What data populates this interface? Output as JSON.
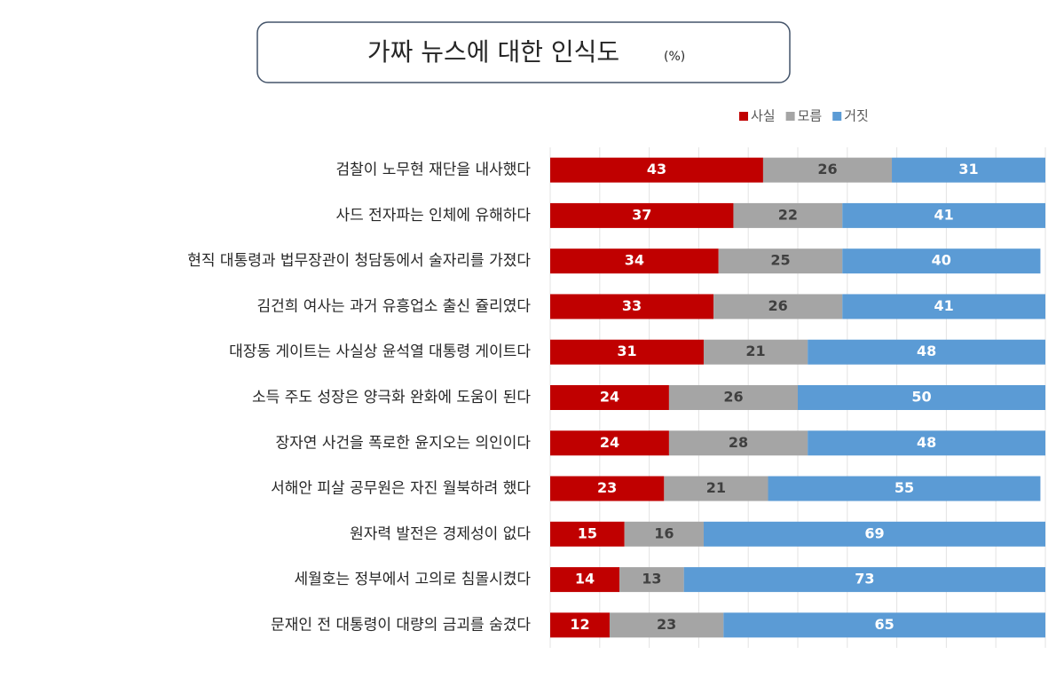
{
  "chart_data": {
    "type": "stacked-bar-horizontal",
    "title": "가짜 뉴스에 대한 인식도",
    "subtitle": "(%)",
    "categories": [
      "검찰이 노무현 재단을 내사했다",
      "사드 전자파는 인체에 유해하다",
      "현직 대통령과 법무장관이 청담동에서 술자리를 가졌다",
      "김건희 여사는 과거 유흥업소 출신 쥴리였다",
      "대장동 게이트는 사실상 윤석열 대통령 게이트다",
      "소득 주도 성장은 양극화 완화에 도움이 된다",
      "장자연 사건을 폭로한 윤지오는 의인이다",
      "서해안 피살 공무원은 자진 월북하려 했다",
      "원자력 발전은 경제성이 없다",
      "세월호는 정부에서 고의로 침몰시켰다",
      "문재인 전 대통령이 대량의 금괴를 숨겼다"
    ],
    "series": [
      {
        "name": "사실",
        "color": "#c00000",
        "label_color": "#ffffff",
        "values": [
          43,
          37,
          34,
          33,
          31,
          24,
          24,
          23,
          15,
          14,
          12
        ]
      },
      {
        "name": "모름",
        "color": "#a5a5a5",
        "label_color": "#404040",
        "values": [
          26,
          22,
          25,
          26,
          21,
          26,
          28,
          21,
          16,
          13,
          23
        ]
      },
      {
        "name": "거짓",
        "color": "#5b9bd5",
        "label_color": "#ffffff",
        "values": [
          31,
          41,
          40,
          41,
          48,
          50,
          48,
          55,
          69,
          73,
          65
        ]
      }
    ],
    "xlim": [
      0,
      100
    ],
    "xticks": [
      0,
      10,
      20,
      30,
      40,
      50,
      60,
      70,
      80,
      90,
      100
    ],
    "grid": true,
    "legend": "top-right"
  }
}
